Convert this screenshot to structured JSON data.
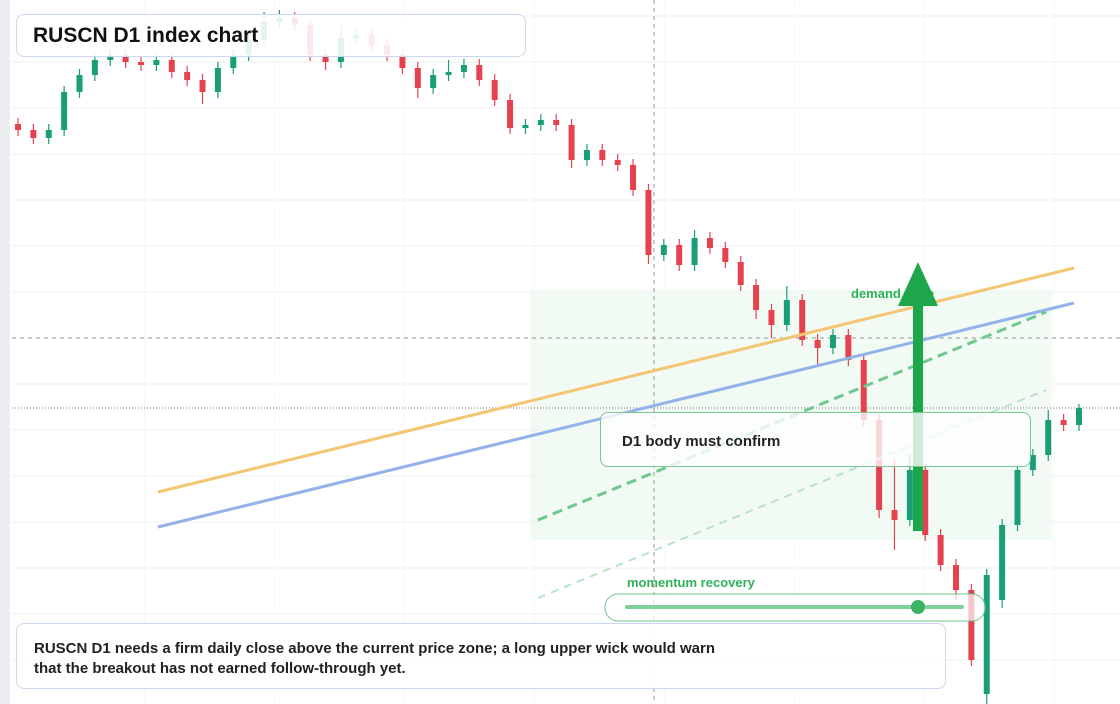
{
  "chart_data": {
    "type": "candlestick",
    "title": "RUSCN D1 index chart",
    "annotations": {
      "zone": "demand zone",
      "callout": "D1 body must confirm",
      "momentum": "momentum recovery",
      "note": [
        "RUSCN D1 needs a firm daily close above the current price zone; a long upper wick would warn",
        "that the breakout has not earned follow-through yet."
      ]
    },
    "up_color": "#1a9e78",
    "down_color": "#e5424f",
    "ylim": [
      0,
      704
    ],
    "open": [
      580,
      574,
      566,
      574,
      612,
      629,
      644,
      649,
      642,
      639,
      644,
      632,
      624,
      612,
      636,
      649,
      664,
      682,
      686,
      679,
      649,
      642,
      666,
      669,
      659,
      649,
      636,
      616,
      629,
      632,
      639,
      624,
      604,
      576,
      579,
      584,
      579,
      544,
      554,
      544,
      539,
      514,
      449,
      459,
      439,
      466,
      456,
      442,
      419,
      394,
      379,
      404,
      364,
      356,
      369,
      344,
      284,
      194,
      184,
      234,
      169,
      139,
      114,
      10,
      104,
      179,
      234,
      249,
      284,
      279
    ],
    "high": [
      586,
      580,
      580,
      618,
      635,
      650,
      655,
      655,
      648,
      650,
      650,
      638,
      630,
      642,
      655,
      670,
      692,
      694,
      692,
      685,
      655,
      678,
      675,
      675,
      665,
      655,
      642,
      635,
      644,
      645,
      645,
      630,
      610,
      585,
      590,
      590,
      585,
      560,
      560,
      550,
      545,
      520,
      465,
      465,
      474,
      472,
      462,
      448,
      425,
      400,
      418,
      410,
      370,
      375,
      375,
      350,
      290,
      244,
      250,
      240,
      175,
      145,
      120,
      135,
      185,
      240,
      255,
      294,
      290,
      300
    ],
    "low": [
      568,
      560,
      560,
      568,
      606,
      623,
      638,
      636,
      633,
      633,
      626,
      618,
      600,
      606,
      630,
      643,
      658,
      676,
      673,
      643,
      634,
      636,
      660,
      653,
      643,
      630,
      606,
      610,
      623,
      626,
      618,
      598,
      570,
      570,
      573,
      573,
      536,
      538,
      538,
      533,
      508,
      440,
      443,
      433,
      433,
      450,
      436,
      413,
      385,
      366,
      373,
      358,
      340,
      350,
      338,
      278,
      186,
      154,
      178,
      163,
      133,
      104,
      38,
      -10,
      96,
      173,
      228,
      243,
      273,
      273
    ],
    "close": [
      574,
      566,
      574,
      612,
      629,
      644,
      649,
      642,
      639,
      644,
      632,
      624,
      612,
      636,
      649,
      664,
      682,
      686,
      679,
      649,
      642,
      666,
      669,
      659,
      649,
      636,
      616,
      629,
      632,
      639,
      624,
      604,
      576,
      579,
      584,
      579,
      544,
      554,
      544,
      539,
      514,
      449,
      459,
      439,
      466,
      456,
      442,
      419,
      394,
      379,
      404,
      364,
      356,
      369,
      344,
      284,
      194,
      184,
      234,
      169,
      139,
      114,
      44,
      129,
      179,
      234,
      249,
      284,
      279,
      296
    ]
  }
}
